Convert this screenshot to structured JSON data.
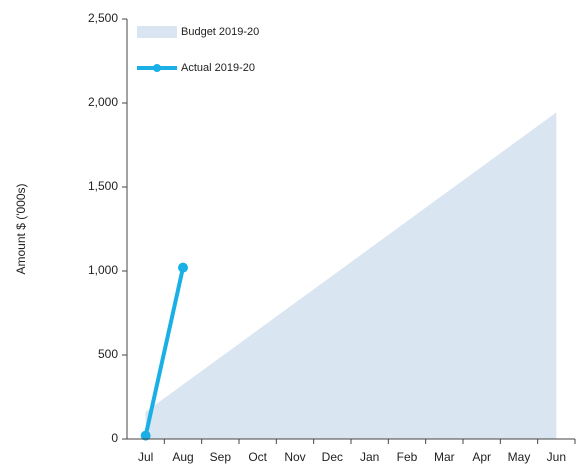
{
  "chart_data": {
    "type": "area_line",
    "ylabel": "Amount $ ('000s)",
    "categories": [
      "Jul",
      "Aug",
      "Sep",
      "Oct",
      "Nov",
      "Dec",
      "Jan",
      "Feb",
      "Mar",
      "Apr",
      "May",
      "Jun"
    ],
    "series": [
      {
        "name": "Budget 2019-20",
        "kind": "area",
        "color": "#dae5f2",
        "values": [
          162,
          324,
          486,
          648,
          810,
          972,
          1134,
          1296,
          1458,
          1620,
          1782,
          1944
        ]
      },
      {
        "name": "Actual 2019-20",
        "kind": "line",
        "color": "#1ab0e6",
        "values": [
          20,
          1020,
          null,
          null,
          null,
          null,
          null,
          null,
          null,
          null,
          null,
          null
        ]
      }
    ],
    "ylim": [
      0,
      2500
    ],
    "yticks": [
      0,
      500,
      {
        "value": 1000,
        "label": "1,000"
      },
      {
        "value": 1500,
        "label": "1,500"
      },
      {
        "value": 2000,
        "label": "2,000"
      },
      {
        "value": 2500,
        "label": "2,500"
      }
    ],
    "legend": "upper left"
  }
}
